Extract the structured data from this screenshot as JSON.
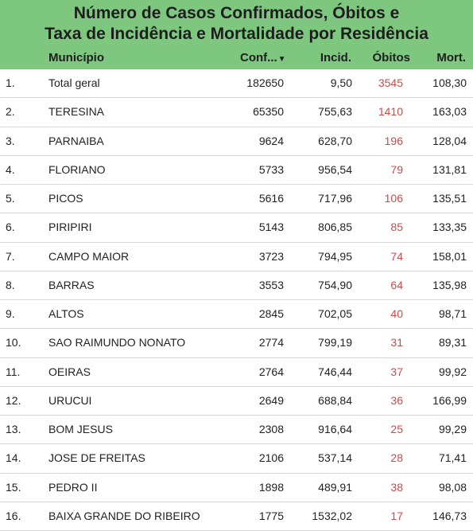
{
  "title": {
    "line1": "Número de Casos Confirmados, Óbitos e",
    "line2": "Taxa de Incidência e Mortalidade por Residência"
  },
  "columns": {
    "municipio": "Município",
    "confirmados": "Conf...",
    "confirmados_sort_icon": "sort-desc-icon",
    "incidencia": "Incid.",
    "obitos": "Óbitos",
    "mortalidade": "Mort."
  },
  "colors": {
    "header_bg": "#7ec77f",
    "obitos_text": "#c94b4b"
  },
  "rows": [
    {
      "idx": "1.",
      "municipio": "Total geral",
      "conf": "182650",
      "incid": "9,50",
      "obitos": "3545",
      "mort": "108,30"
    },
    {
      "idx": "2.",
      "municipio": "TERESINA",
      "conf": "65350",
      "incid": "755,63",
      "obitos": "1410",
      "mort": "163,03"
    },
    {
      "idx": "3.",
      "municipio": "PARNAIBA",
      "conf": "9624",
      "incid": "628,70",
      "obitos": "196",
      "mort": "128,04"
    },
    {
      "idx": "4.",
      "municipio": "FLORIANO",
      "conf": "5733",
      "incid": "956,54",
      "obitos": "79",
      "mort": "131,81"
    },
    {
      "idx": "5.",
      "municipio": "PICOS",
      "conf": "5616",
      "incid": "717,96",
      "obitos": "106",
      "mort": "135,51"
    },
    {
      "idx": "6.",
      "municipio": "PIRIPIRI",
      "conf": "5143",
      "incid": "806,85",
      "obitos": "85",
      "mort": "133,35"
    },
    {
      "idx": "7.",
      "municipio": "CAMPO MAIOR",
      "conf": "3723",
      "incid": "794,95",
      "obitos": "74",
      "mort": "158,01"
    },
    {
      "idx": "8.",
      "municipio": "BARRAS",
      "conf": "3553",
      "incid": "754,90",
      "obitos": "64",
      "mort": "135,98"
    },
    {
      "idx": "9.",
      "municipio": "ALTOS",
      "conf": "2845",
      "incid": "702,05",
      "obitos": "40",
      "mort": "98,71"
    },
    {
      "idx": "10.",
      "municipio": "SAO RAIMUNDO NONATO",
      "conf": "2774",
      "incid": "799,19",
      "obitos": "31",
      "mort": "89,31"
    },
    {
      "idx": "11.",
      "municipio": "OEIRAS",
      "conf": "2764",
      "incid": "746,44",
      "obitos": "37",
      "mort": "99,92"
    },
    {
      "idx": "12.",
      "municipio": "URUCUI",
      "conf": "2649",
      "incid": "688,84",
      "obitos": "36",
      "mort": "166,99"
    },
    {
      "idx": "13.",
      "municipio": "BOM JESUS",
      "conf": "2308",
      "incid": "916,64",
      "obitos": "25",
      "mort": "99,29"
    },
    {
      "idx": "14.",
      "municipio": "JOSE DE FREITAS",
      "conf": "2106",
      "incid": "537,14",
      "obitos": "28",
      "mort": "71,41"
    },
    {
      "idx": "15.",
      "municipio": "PEDRO II",
      "conf": "1898",
      "incid": "489,91",
      "obitos": "38",
      "mort": "98,08"
    },
    {
      "idx": "16.",
      "municipio": "BAIXA GRANDE DO RIBEIRO",
      "conf": "1775",
      "incid": "1532,02",
      "obitos": "17",
      "mort": "146,73"
    }
  ]
}
